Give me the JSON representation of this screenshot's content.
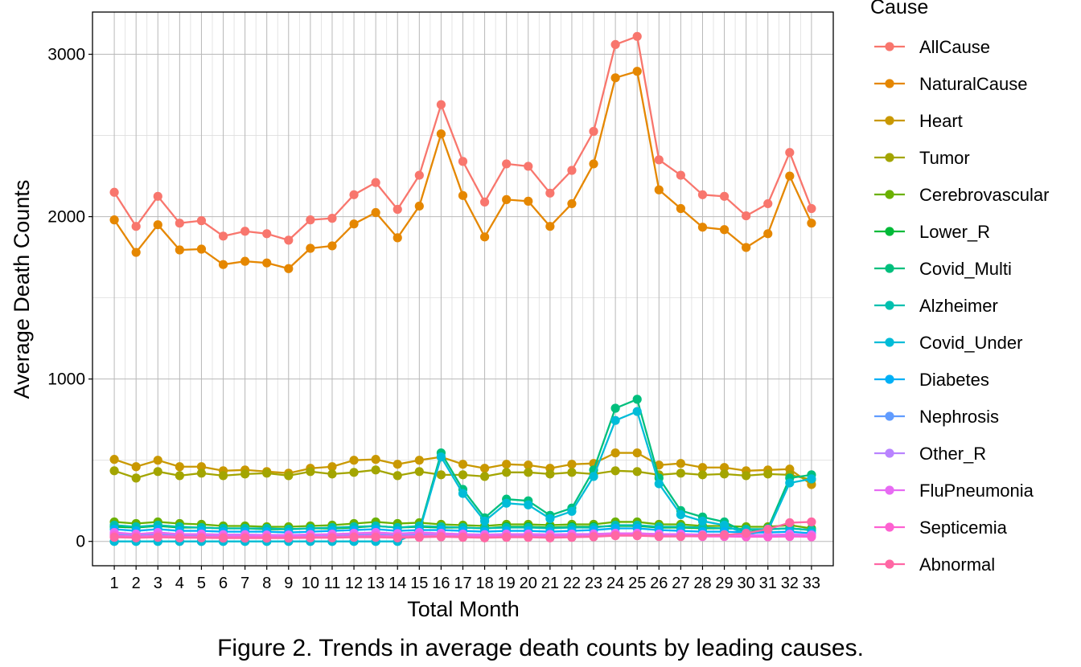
{
  "caption": "Figure 2. Trends in average death counts by leading causes.",
  "chart_data": {
    "type": "line",
    "xlabel": "Total Month",
    "ylabel": "Average Death Counts",
    "legend_title": "Cause",
    "legend_position": "right",
    "grid": true,
    "xlim": [
      0,
      34
    ],
    "ylim": [
      -150,
      3260
    ],
    "yticks": [
      0,
      1000,
      2000,
      3000
    ],
    "x": [
      1,
      2,
      3,
      4,
      5,
      6,
      7,
      8,
      9,
      10,
      11,
      12,
      13,
      14,
      15,
      16,
      17,
      18,
      19,
      20,
      21,
      22,
      23,
      24,
      25,
      26,
      27,
      28,
      29,
      30,
      31,
      32,
      33
    ],
    "series": [
      {
        "name": "AllCause",
        "color": "#F8766D",
        "values": [
          2150,
          1940,
          2125,
          1960,
          1975,
          1880,
          1910,
          1895,
          1855,
          1980,
          1990,
          2135,
          2210,
          2045,
          2255,
          2690,
          2340,
          2090,
          2325,
          2310,
          2145,
          2285,
          2525,
          3060,
          3110,
          2350,
          2255,
          2135,
          2125,
          2005,
          2080,
          2395,
          2050
        ]
      },
      {
        "name": "NaturalCause",
        "color": "#E58700",
        "values": [
          1980,
          1780,
          1950,
          1795,
          1800,
          1705,
          1725,
          1715,
          1680,
          1805,
          1820,
          1955,
          2025,
          1870,
          2065,
          2510,
          2130,
          1875,
          2105,
          2095,
          1940,
          2080,
          2325,
          2855,
          2895,
          2165,
          2050,
          1935,
          1920,
          1810,
          1895,
          2250,
          1960
        ]
      },
      {
        "name": "Heart",
        "color": "#C99800",
        "values": [
          505,
          460,
          500,
          460,
          460,
          435,
          440,
          430,
          420,
          450,
          460,
          500,
          505,
          475,
          500,
          520,
          475,
          450,
          475,
          470,
          450,
          475,
          480,
          545,
          545,
          470,
          480,
          455,
          455,
          435,
          440,
          445,
          350
        ]
      },
      {
        "name": "Tumor",
        "color": "#A3A500",
        "values": [
          435,
          390,
          430,
          405,
          420,
          405,
          415,
          420,
          405,
          430,
          415,
          425,
          440,
          405,
          430,
          410,
          410,
          400,
          425,
          425,
          415,
          425,
          415,
          435,
          430,
          410,
          420,
          410,
          415,
          405,
          415,
          410,
          380
        ]
      },
      {
        "name": "Cerebrovascular",
        "color": "#6BB100",
        "values": [
          120,
          110,
          120,
          110,
          105,
          95,
          95,
          90,
          90,
          95,
          100,
          110,
          120,
          110,
          115,
          105,
          100,
          95,
          105,
          105,
          100,
          105,
          105,
          120,
          120,
          105,
          105,
          95,
          95,
          90,
          90,
          100,
          80
        ]
      },
      {
        "name": "Lower_R",
        "color": "#00BA38",
        "values": [
          90,
          85,
          95,
          85,
          85,
          80,
          80,
          75,
          75,
          80,
          80,
          85,
          95,
          85,
          90,
          85,
          85,
          80,
          90,
          90,
          85,
          90,
          90,
          95,
          95,
          85,
          85,
          80,
          80,
          75,
          75,
          80,
          70
        ]
      },
      {
        "name": "Covid_Multi",
        "color": "#00BF7D",
        "values": [
          0,
          0,
          0,
          0,
          0,
          0,
          0,
          0,
          0,
          0,
          0,
          0,
          0,
          0,
          70,
          545,
          320,
          145,
          260,
          250,
          160,
          205,
          440,
          820,
          875,
          390,
          190,
          150,
          120,
          55,
          80,
          390,
          410
        ]
      },
      {
        "name": "Alzheimer",
        "color": "#00C0AF",
        "values": [
          100,
          90,
          100,
          90,
          85,
          80,
          80,
          80,
          75,
          80,
          85,
          90,
          95,
          85,
          95,
          90,
          85,
          80,
          85,
          85,
          80,
          85,
          85,
          100,
          100,
          90,
          90,
          85,
          80,
          75,
          75,
          80,
          70
        ]
      },
      {
        "name": "Covid_Under",
        "color": "#00BCD8",
        "values": [
          0,
          0,
          0,
          0,
          0,
          0,
          0,
          0,
          0,
          0,
          0,
          0,
          0,
          0,
          60,
          520,
          295,
          125,
          235,
          225,
          140,
          185,
          400,
          745,
          800,
          355,
          165,
          125,
          100,
          45,
          65,
          360,
          385
        ]
      },
      {
        "name": "Diabetes",
        "color": "#00B0F6",
        "values": [
          75,
          65,
          75,
          65,
          65,
          60,
          60,
          60,
          55,
          60,
          65,
          70,
          75,
          65,
          70,
          70,
          65,
          60,
          65,
          65,
          60,
          65,
          70,
          80,
          80,
          70,
          65,
          60,
          60,
          55,
          55,
          60,
          50
        ]
      },
      {
        "name": "Nephrosis",
        "color": "#619CFF",
        "values": [
          45,
          40,
          45,
          40,
          40,
          38,
          38,
          37,
          36,
          38,
          40,
          42,
          45,
          40,
          42,
          42,
          40,
          38,
          40,
          40,
          38,
          40,
          42,
          48,
          48,
          42,
          40,
          38,
          38,
          36,
          36,
          40,
          35
        ]
      },
      {
        "name": "Other_R",
        "color": "#B983FF",
        "values": [
          50,
          45,
          50,
          45,
          45,
          42,
          42,
          40,
          40,
          42,
          43,
          47,
          50,
          45,
          48,
          46,
          44,
          42,
          45,
          45,
          43,
          45,
          46,
          50,
          50,
          45,
          44,
          42,
          42,
          40,
          40,
          42,
          38
        ]
      },
      {
        "name": "FluPneumonia",
        "color": "#E76BF3",
        "values": [
          55,
          45,
          55,
          45,
          45,
          40,
          40,
          38,
          38,
          42,
          45,
          50,
          55,
          48,
          55,
          50,
          45,
          40,
          45,
          45,
          42,
          45,
          45,
          50,
          50,
          45,
          45,
          40,
          40,
          38,
          38,
          45,
          40
        ]
      },
      {
        "name": "Septicemia",
        "color": "#FD61D1",
        "values": [
          35,
          30,
          35,
          30,
          30,
          28,
          28,
          27,
          27,
          28,
          30,
          32,
          35,
          30,
          33,
          35,
          32,
          30,
          32,
          32,
          30,
          32,
          33,
          40,
          40,
          33,
          32,
          30,
          30,
          28,
          28,
          30,
          28
        ]
      },
      {
        "name": "Abnormal",
        "color": "#FF67A4",
        "values": [
          25,
          22,
          25,
          22,
          22,
          20,
          20,
          20,
          20,
          22,
          22,
          25,
          25,
          22,
          25,
          28,
          25,
          22,
          25,
          25,
          22,
          25,
          28,
          35,
          35,
          30,
          30,
          35,
          40,
          50,
          75,
          115,
          120
        ]
      }
    ]
  }
}
